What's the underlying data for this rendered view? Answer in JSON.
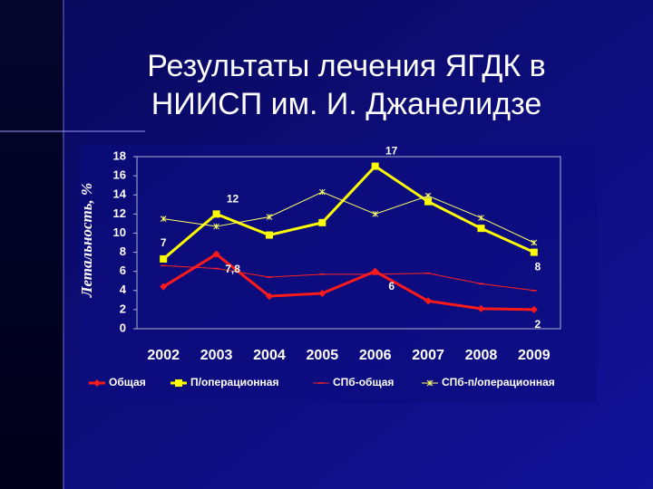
{
  "chart_data": {
    "type": "line",
    "title": "Результаты лечения ЯГДК в НИИСП им. И. Джанелидзе",
    "y_label": "Летальность, %",
    "categories": [
      "2002",
      "2003",
      "2004",
      "2005",
      "2006",
      "2007",
      "2008",
      "2009"
    ],
    "series": [
      {
        "name": "Общая",
        "color": "#ff1a1a",
        "marker": "diamond",
        "values": [
          4.4,
          7.8,
          3.4,
          3.7,
          6,
          2.9,
          2.1,
          2
        ],
        "value_labels": [
          null,
          "7,8",
          null,
          null,
          "6",
          null,
          null,
          "2"
        ]
      },
      {
        "name": "П/операционная",
        "color": "#ffff00",
        "marker": "square",
        "values": [
          7.3,
          12,
          9.8,
          11.1,
          17,
          13.3,
          10.5,
          8
        ],
        "value_labels": [
          "7",
          "12",
          null,
          null,
          "17",
          null,
          null,
          "8"
        ]
      },
      {
        "name": "СПб-общая",
        "color": "#ff2020",
        "marker": "dash",
        "values": [
          6.6,
          6.3,
          5.4,
          5.7,
          5.7,
          5.8,
          4.7,
          4.0
        ]
      },
      {
        "name": "СПб-п/операционная",
        "color": "#ffff66",
        "marker": "star",
        "values": [
          11.5,
          10.7,
          11.7,
          14.3,
          12.0,
          13.9,
          11.6,
          9.0
        ]
      }
    ],
    "ylim": [
      0,
      18
    ],
    "yticks": [
      0,
      2,
      4,
      6,
      8,
      10,
      12,
      14,
      16,
      18
    ],
    "grid": false
  }
}
